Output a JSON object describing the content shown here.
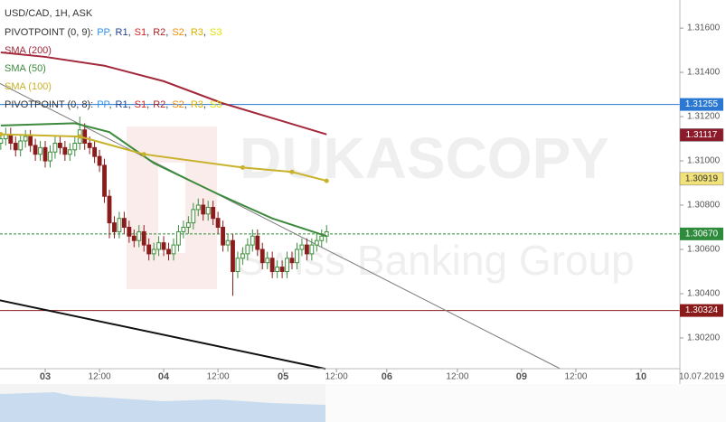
{
  "chart_data": {
    "type": "candlestick",
    "title": "USD/CAD, 1H, ASK",
    "pivot_legends": [
      {
        "label": "PIVOTPOINT (0, 9):",
        "separator": ",",
        "levels": [
          {
            "name": "PP",
            "color": "#2f8fef"
          },
          {
            "name": "R1",
            "color": "#1f3f8f"
          },
          {
            "name": "S1",
            "color": "#d42020"
          },
          {
            "name": "R2",
            "color": "#a82424"
          },
          {
            "name": "S2",
            "color": "#ef8c00"
          },
          {
            "name": "R3",
            "color": "#d8b000"
          },
          {
            "name": "S3",
            "color": "#e6e000"
          }
        ]
      },
      {
        "label": "PIVOTPOINT (0, 8):",
        "separator": ",",
        "levels": [
          {
            "name": "PP",
            "color": "#2f8fef"
          },
          {
            "name": "R1",
            "color": "#1f3f8f"
          },
          {
            "name": "S1",
            "color": "#d42020"
          },
          {
            "name": "R2",
            "color": "#a82424"
          },
          {
            "name": "S2",
            "color": "#ef8c00"
          },
          {
            "name": "R3",
            "color": "#d8b000"
          },
          {
            "name": "S3",
            "color": "#e6e000"
          }
        ]
      }
    ],
    "candles": {
      "x": [
        -9,
        -8,
        -7,
        -6,
        -5,
        -4,
        -3,
        -2,
        -1,
        0,
        1,
        2,
        3,
        4,
        5,
        6,
        7,
        8,
        9,
        10,
        11,
        12,
        13,
        14,
        15,
        16,
        17,
        18,
        19,
        20,
        21,
        22,
        23,
        24,
        25,
        26,
        27,
        28,
        29,
        30,
        31,
        32,
        33,
        34,
        35,
        36,
        37,
        38,
        39,
        40,
        41,
        42,
        43,
        44,
        45,
        46,
        47,
        48,
        49,
        50,
        51,
        52,
        53,
        54,
        55,
        56,
        57
      ],
      "open": [
        1.3108,
        1.311,
        1.3112,
        1.3108,
        1.3105,
        1.3109,
        1.3111,
        1.3107,
        1.3103,
        1.3106,
        1.31,
        1.3104,
        1.3108,
        1.3106,
        1.3103,
        1.3105,
        1.3108,
        1.3114,
        1.3108,
        1.3106,
        1.3102,
        1.3098,
        1.3084,
        1.3072,
        1.3068,
        1.3074,
        1.307,
        1.3066,
        1.3064,
        1.3068,
        1.3062,
        1.3058,
        1.306,
        1.3063,
        1.306,
        1.3058,
        1.3062,
        1.3068,
        1.307,
        1.3072,
        1.3078,
        1.308,
        1.3076,
        1.3079,
        1.3074,
        1.307,
        1.3062,
        1.3064,
        1.305,
        1.3056,
        1.3058,
        1.3062,
        1.3066,
        1.306,
        1.3054,
        1.3056,
        1.305,
        1.3052,
        1.305,
        1.3056,
        1.3054,
        1.306,
        1.3062,
        1.3058,
        1.3062,
        1.3064,
        1.3066
      ],
      "high": [
        1.3113,
        1.3115,
        1.3115,
        1.3111,
        1.3112,
        1.3114,
        1.3114,
        1.311,
        1.3109,
        1.3109,
        1.3107,
        1.3111,
        1.3111,
        1.3109,
        1.3108,
        1.3111,
        1.312,
        1.3117,
        1.3111,
        1.3109,
        1.3105,
        1.3101,
        1.3087,
        1.3075,
        1.3077,
        1.3077,
        1.3073,
        1.3069,
        1.3071,
        1.3071,
        1.3065,
        1.3063,
        1.3066,
        1.3066,
        1.3063,
        1.3065,
        1.3071,
        1.3073,
        1.3075,
        1.3081,
        1.3083,
        1.3083,
        1.3082,
        1.3082,
        1.3077,
        1.3073,
        1.3067,
        1.3067,
        1.3059,
        1.3061,
        1.3065,
        1.3069,
        1.3069,
        1.3063,
        1.3059,
        1.3059,
        1.3055,
        1.3055,
        1.3059,
        1.3059,
        1.3063,
        1.3065,
        1.3065,
        1.3065,
        1.3067,
        1.3069,
        1.3071
      ],
      "low": [
        1.3105,
        1.3107,
        1.3105,
        1.3102,
        1.3102,
        1.3106,
        1.3104,
        1.31,
        1.31,
        1.3097,
        1.3097,
        1.3101,
        1.3103,
        1.31,
        1.31,
        1.3102,
        1.3105,
        1.3105,
        1.3103,
        1.3099,
        1.3095,
        1.3081,
        1.3065,
        1.3065,
        1.3065,
        1.3067,
        1.3063,
        1.3061,
        1.3061,
        1.3059,
        1.3055,
        1.3055,
        1.3057,
        1.3057,
        1.3055,
        1.3055,
        1.3059,
        1.3065,
        1.3067,
        1.3069,
        1.3075,
        1.3073,
        1.3073,
        1.3071,
        1.3067,
        1.3059,
        1.3059,
        1.3039,
        1.3047,
        1.3053,
        1.3055,
        1.3059,
        1.3057,
        1.3051,
        1.3051,
        1.3047,
        1.3047,
        1.3047,
        1.3047,
        1.3051,
        1.3051,
        1.3057,
        1.3055,
        1.3055,
        1.3059,
        1.3061,
        1.3063
      ],
      "close": [
        1.311,
        1.3112,
        1.3108,
        1.3105,
        1.3109,
        1.3111,
        1.3107,
        1.3103,
        1.3106,
        1.31,
        1.3104,
        1.3108,
        1.3106,
        1.3103,
        1.3105,
        1.3108,
        1.3114,
        1.3108,
        1.3106,
        1.3102,
        1.3098,
        1.3084,
        1.3072,
        1.3068,
        1.3074,
        1.307,
        1.3066,
        1.3064,
        1.3068,
        1.3062,
        1.3058,
        1.306,
        1.3063,
        1.306,
        1.3058,
        1.3062,
        1.3068,
        1.307,
        1.3072,
        1.3078,
        1.308,
        1.3076,
        1.3079,
        1.3074,
        1.307,
        1.3062,
        1.3064,
        1.305,
        1.3056,
        1.3058,
        1.3062,
        1.3066,
        1.306,
        1.3054,
        1.3056,
        1.305,
        1.3052,
        1.305,
        1.3056,
        1.3054,
        1.306,
        1.3062,
        1.3058,
        1.3062,
        1.3064,
        1.3066,
        1.3068
      ],
      "up_color": "#3d8f3d",
      "down_color": "#8b1c1c"
    },
    "series": [
      {
        "name": "SMA (200)",
        "color": "#a3283a",
        "x": [
          -9,
          0,
          12,
          24,
          36,
          48,
          57
        ],
        "values": [
          1.3149,
          1.3147,
          1.3143,
          1.3136,
          1.3126,
          1.3118,
          1.3112
        ]
      },
      {
        "name": "SMA (50)",
        "color": "#3c8a3c",
        "x": [
          -9,
          6,
          13,
          22,
          35,
          46,
          57
        ],
        "values": [
          1.3116,
          1.3117,
          1.3113,
          1.3099,
          1.3085,
          1.3074,
          1.3066
        ]
      },
      {
        "name": "SMA (100)",
        "color": "#c9b22b",
        "x": [
          -9,
          7,
          20,
          40,
          50,
          57
        ],
        "values": [
          1.3112,
          1.3111,
          1.3103,
          1.3097,
          1.3095,
          1.3091
        ]
      }
    ],
    "trendlines": [
      {
        "color": "#7a7a7a",
        "x": [
          -9.2,
          104.4
        ],
        "values": [
          1.3135,
          1.3006
        ]
      },
      {
        "color": "#111111",
        "x": [
          -9.2,
          56.8
        ],
        "values": [
          1.3037,
          1.3006
        ]
      }
    ],
    "price_lines": [
      {
        "value": 1.31255,
        "color": "#2a78d2"
      },
      {
        "value": {
          "value": 1.3067,
          "label": "1.30670"
        },
        "color": "#2e8b3c",
        "dashed": true
      },
      {
        "value": 1.30324,
        "color": "#8b1a1a"
      }
    ],
    "axis_markers": [
      {
        "value": 1.31117,
        "color": "#8b1a2a",
        "text_color": "#ffffff"
      },
      {
        "value": 1.30919,
        "color": "#f2e27a",
        "text_color": "#333333"
      }
    ],
    "xlim": [
      -9.16,
      128.57
    ],
    "xticks": [
      {
        "value": 0,
        "label": "03"
      },
      {
        "value": 11,
        "label": "12:00"
      },
      {
        "value": 24,
        "label": "04"
      },
      {
        "value": 35,
        "label": "12:00"
      },
      {
        "value": 48.2,
        "label": "05"
      },
      {
        "value": 59,
        "label": "12:00"
      },
      {
        "value": 69.2,
        "label": "06"
      },
      {
        "value": 83.5,
        "label": "12:00"
      },
      {
        "value": 96.5,
        "label": "09"
      },
      {
        "value": 107.5,
        "label": "12:00"
      },
      {
        "value": 120.7,
        "label": "10"
      }
    ],
    "date_label": "10.07.2019",
    "ylim": [
      1.30061,
      1.31727
    ],
    "yticks": [
      {
        "value": 1.302,
        "label": "1.30200"
      },
      {
        "value": 1.304,
        "label": "1.30400"
      },
      {
        "value": 1.306,
        "label": "1.30600"
      },
      {
        "value": 1.308,
        "label": "1.30800"
      },
      {
        "value": 1.31,
        "label": "1.31000"
      },
      {
        "value": 1.312,
        "label": "1.31200"
      },
      {
        "value": 1.314,
        "label": "1.31400"
      },
      {
        "value": 1.316,
        "label": "1.31600"
      }
    ],
    "watermark": {
      "brand": "DUKASCOPY",
      "tagline": "Swiss Banking Group"
    }
  }
}
